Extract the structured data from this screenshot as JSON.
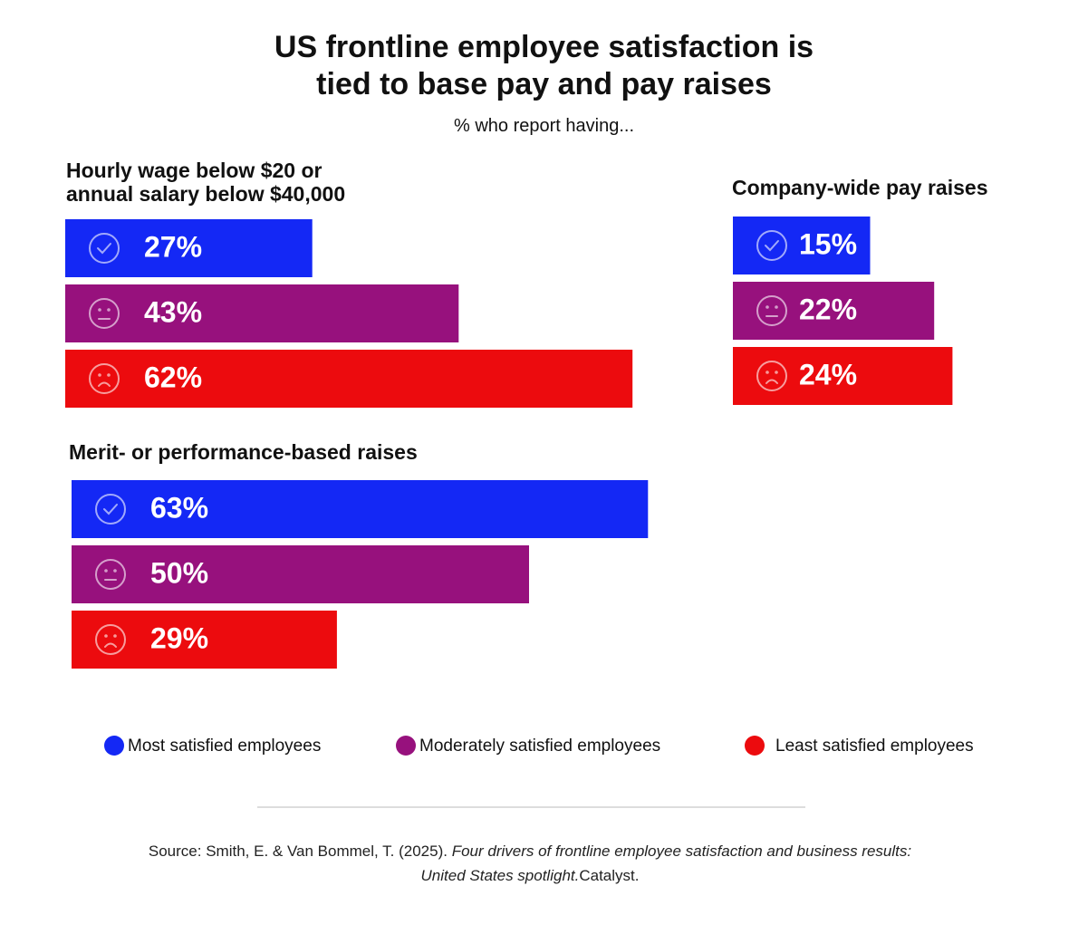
{
  "title": "US frontline employee satisfaction is\ntied to base pay and pay raises",
  "subtitle": "% who report having...",
  "chart_data": {
    "type": "bar",
    "orientation": "horizontal",
    "categories": [
      "Hourly wage below $20 or\nannual salary below $40,000",
      "Company-wide pay raises",
      "Merit- or performance-based raises"
    ],
    "series": [
      {
        "name": "Most satisfied employees",
        "color": "#1428f5",
        "values": [
          27,
          15,
          63
        ],
        "value_labels": [
          "27%",
          "15%",
          "63%"
        ]
      },
      {
        "name": "Moderately satisfied employees",
        "color": "#97117d",
        "values": [
          43,
          22,
          50
        ],
        "value_labels": [
          "43%",
          "22%",
          "50%"
        ]
      },
      {
        "name": "Least satisfied employees",
        "color": "#ec0b0e",
        "values": [
          62,
          24,
          29
        ],
        "value_labels": [
          "62%",
          "24%",
          "29%"
        ]
      }
    ]
  },
  "source": {
    "prefix": "Source: Smith, E. & Van Bommel, T. (2025). ",
    "italic": "Four drivers of frontline employee satisfaction and business results: United States spotlight.",
    "suffix": "Catalyst."
  }
}
